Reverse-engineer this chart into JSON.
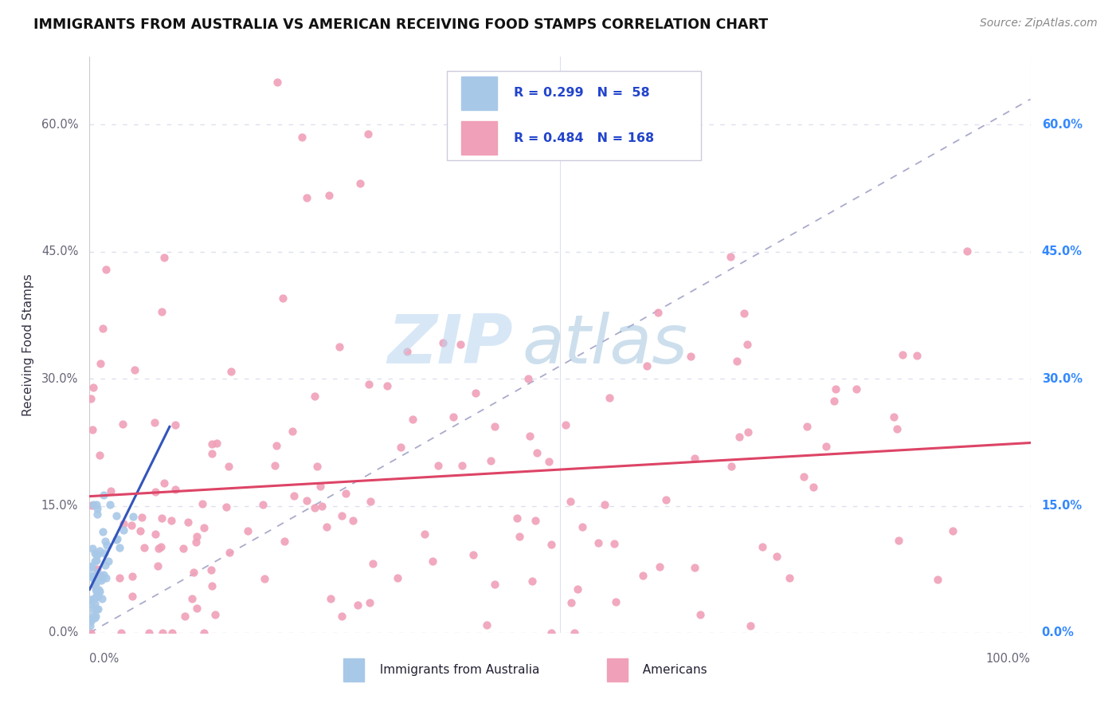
{
  "title": "IMMIGRANTS FROM AUSTRALIA VS AMERICAN RECEIVING FOOD STAMPS CORRELATION CHART",
  "source": "Source: ZipAtlas.com",
  "ylabel": "Receiving Food Stamps",
  "xlim": [
    0.0,
    1.0
  ],
  "ylim": [
    0.0,
    0.68
  ],
  "y_tick_labels": [
    "0.0%",
    "15.0%",
    "30.0%",
    "45.0%",
    "60.0%"
  ],
  "y_tick_positions": [
    0.0,
    0.15,
    0.3,
    0.45,
    0.6
  ],
  "australia_R": 0.299,
  "australia_N": 58,
  "americans_R": 0.484,
  "americans_N": 168,
  "australia_color": "#a8c8e8",
  "americans_color": "#f0a0b8",
  "australia_line_color": "#3355bb",
  "americans_line_color": "#dd4466",
  "dashed_line_color": "#aaaacc",
  "watermark_zip": "ZIP",
  "watermark_atlas": "atlas",
  "background_color": "#ffffff",
  "grid_color": "#dde0ee",
  "legend_text_color": "#2244cc",
  "title_color": "#111111",
  "right_ytick_color": "#3388ff",
  "left_ytick_color": "#666677",
  "source_color": "#888888"
}
